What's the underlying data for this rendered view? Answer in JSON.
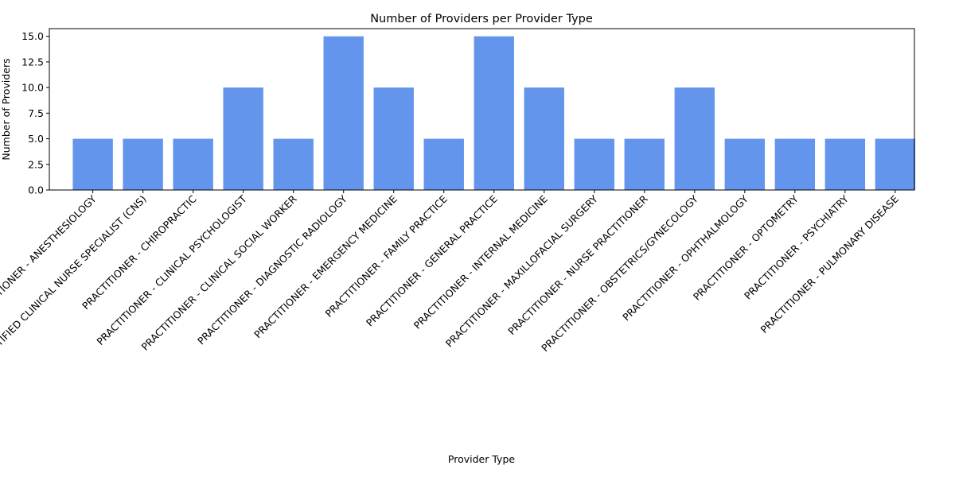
{
  "chart_data": {
    "type": "bar",
    "title": "Number of Providers per Provider Type",
    "xlabel": "Provider Type",
    "ylabel": "Number of Providers",
    "ylim": [
      0,
      15.75
    ],
    "yticks": [
      "0.0",
      "2.5",
      "5.0",
      "7.5",
      "10.0",
      "12.5",
      "15.0"
    ],
    "bar_color": "#6495ED",
    "grid": false,
    "legend": "none",
    "categories": [
      "PRACTITIONER - ANESTHESIOLOGY",
      "PRACTITIONER - CERTIFIED CLINICAL NURSE SPECIALIST (CNS)",
      "PRACTITIONER - CHIROPRACTIC",
      "PRACTITIONER - CLINICAL PSYCHOLOGIST",
      "PRACTITIONER - CLINICAL SOCIAL WORKER",
      "PRACTITIONER - DIAGNOSTIC RADIOLOGY",
      "PRACTITIONER - EMERGENCY MEDICINE",
      "PRACTITIONER - FAMILY PRACTICE",
      "PRACTITIONER - GENERAL PRACTICE",
      "PRACTITIONER - INTERNAL MEDICINE",
      "PRACTITIONER - MAXILLOFACIAL SURGERY",
      "PRACTITIONER - NURSE PRACTITIONER",
      "PRACTITIONER - OBSTETRICS/GYNECOLOGY",
      "PRACTITIONER - OPHTHALMOLOGY",
      "PRACTITIONER - OPTOMETRY",
      "PRACTITIONER - PSYCHIATRY",
      "PRACTITIONER - PULMONARY DISEASE"
    ],
    "values": [
      5,
      5,
      5,
      10,
      5,
      15,
      10,
      5,
      15,
      10,
      5,
      5,
      10,
      5,
      5,
      5,
      5
    ]
  }
}
